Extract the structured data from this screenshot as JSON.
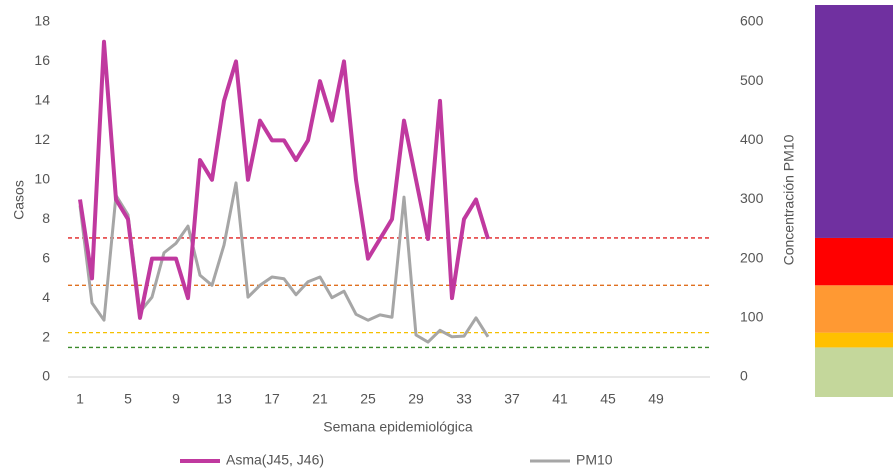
{
  "chart_data": {
    "type": "line",
    "x_label": "Semana epidemiológica",
    "y_label": "Casos",
    "y2_label": "Concentración PM10",
    "x": [
      1,
      2,
      3,
      4,
      5,
      6,
      7,
      8,
      9,
      10,
      11,
      12,
      13,
      14,
      15,
      16,
      17,
      18,
      19,
      20,
      21,
      22,
      23,
      24,
      25,
      26,
      27,
      28,
      29,
      30,
      31,
      32,
      33,
      34,
      35
    ],
    "xlim": [
      0,
      53.5
    ],
    "xticks": [
      1,
      5,
      9,
      13,
      17,
      21,
      25,
      29,
      33,
      37,
      41,
      45,
      49
    ],
    "ylim": [
      0,
      18
    ],
    "yticks": [
      0,
      2,
      4,
      6,
      8,
      10,
      12,
      14,
      16,
      18
    ],
    "y2lim": [
      0,
      600
    ],
    "y2ticks": [
      0,
      100,
      200,
      300,
      400,
      500,
      600
    ],
    "series": [
      {
        "name": "Asma(J45, J46)",
        "color": "#c0399f",
        "values": [
          9,
          5,
          17,
          9,
          8,
          3,
          6,
          6,
          6,
          4,
          11,
          10,
          14,
          16,
          10,
          13,
          12,
          12,
          11,
          12,
          15,
          13,
          16,
          10,
          6,
          7,
          8,
          13,
          10,
          7,
          14,
          4,
          8,
          9,
          7
        ]
      },
      {
        "name": "PM10",
        "color": "#a6a6a6",
        "axis": "y2",
        "values": [
          290,
          125,
          96,
          307,
          274,
          110,
          135,
          210,
          226,
          255,
          172,
          155,
          223,
          328,
          135,
          155,
          169,
          166,
          139,
          161,
          169,
          134,
          145,
          106,
          96,
          105,
          101,
          304,
          71,
          59,
          79,
          68,
          69,
          100,
          68
        ]
      }
    ],
    "thresholds": [
      {
        "value": 50,
        "color": "#3a8a2a",
        "fill": "#c4d79b"
      },
      {
        "value": 75,
        "color": "#f5c000",
        "fill": "#ffc000"
      },
      {
        "value": 155,
        "color": "#e07020",
        "fill": "#ff9933"
      },
      {
        "value": 235,
        "color": "#e02020",
        "fill": "#ff0000"
      }
    ],
    "top_fill": "#7030a0",
    "legend": "bottom"
  }
}
